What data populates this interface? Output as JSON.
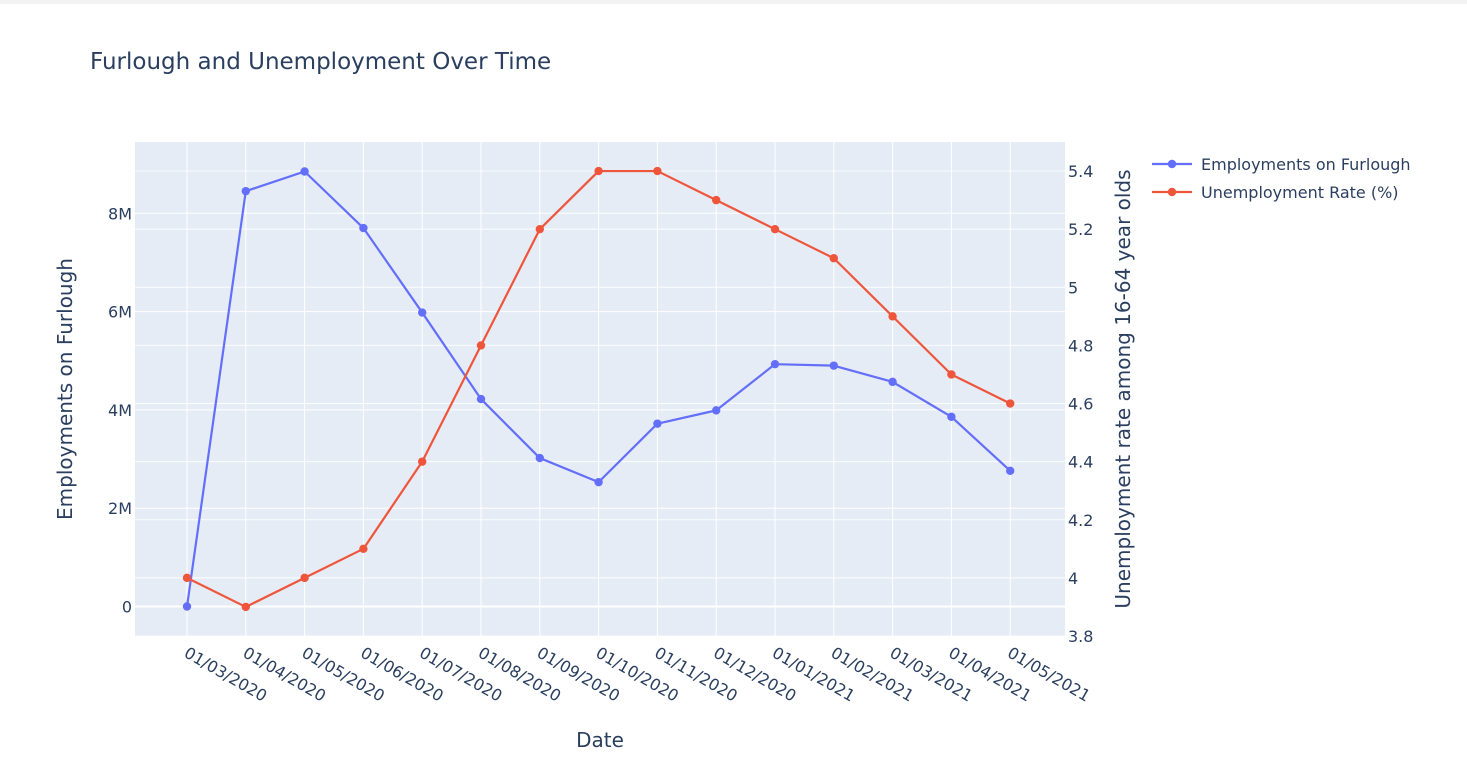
{
  "chart_data": {
    "type": "line",
    "title": "Furlough and Unemployment Over Time",
    "xlabel": "Date",
    "ylabel_left": "Employments on Furlough",
    "ylabel_right": "Unemployment rate among 16-64 year olds",
    "categories": [
      "01/03/2020",
      "01/04/2020",
      "01/05/2020",
      "01/06/2020",
      "01/07/2020",
      "01/08/2020",
      "01/09/2020",
      "01/10/2020",
      "01/11/2020",
      "01/12/2020",
      "01/01/2021",
      "01/02/2021",
      "01/03/2021",
      "01/04/2021",
      "01/05/2021"
    ],
    "y_left_range": [
      -600000,
      9450000
    ],
    "y_left_ticks": [
      0,
      2000000,
      4000000,
      6000000,
      8000000
    ],
    "y_left_tick_labels": [
      "0",
      "2M",
      "4M",
      "6M",
      "8M"
    ],
    "y_right_range": [
      3.8,
      5.5
    ],
    "y_right_ticks": [
      3.8,
      4,
      4.2,
      4.4,
      4.6,
      4.8,
      5,
      5.2,
      5.4
    ],
    "y_right_tick_labels": [
      "3.8",
      "4",
      "4.2",
      "4.4",
      "4.6",
      "4.8",
      "5",
      "5.2",
      "5.4"
    ],
    "grid": true,
    "legend_position": "top-right, outside plot",
    "plot_background": "#e5ecf6",
    "series": [
      {
        "name": "Employments on Furlough",
        "axis": "left",
        "color": "#636efa",
        "values": [
          0,
          8450000,
          8850000,
          7700000,
          5980000,
          4220000,
          3020000,
          2530000,
          3720000,
          3990000,
          4930000,
          4900000,
          4570000,
          3860000,
          2760000
        ]
      },
      {
        "name": "Unemployment Rate (%)",
        "axis": "right",
        "color": "#ef553b",
        "values": [
          4.0,
          3.9,
          4.0,
          4.1,
          4.4,
          4.8,
          5.2,
          5.4,
          5.4,
          5.3,
          5.2,
          5.1,
          4.9,
          4.7,
          4.6
        ]
      }
    ]
  }
}
